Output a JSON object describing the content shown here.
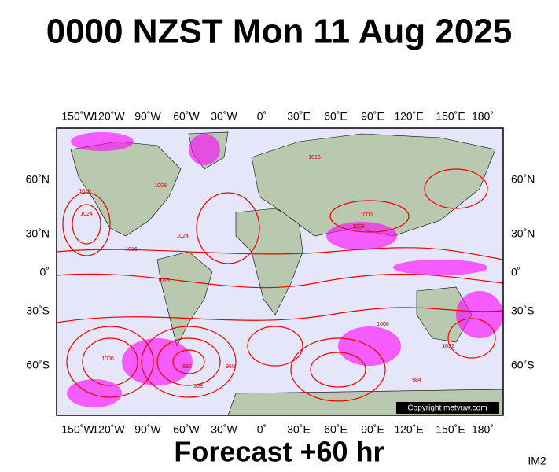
{
  "header": {
    "title": "0000 NZST Mon 11 Aug 2025"
  },
  "map": {
    "lon_labels": [
      "150˚W",
      "120˚W",
      "90˚W",
      "60˚W",
      "30˚W",
      "0˚",
      "30˚E",
      "60˚E",
      "90˚E",
      "120˚E",
      "150˚E",
      "180˚"
    ],
    "lat_labels": [
      "60˚N",
      "30˚N",
      "0˚",
      "30˚S",
      "60˚S"
    ],
    "isobar_labels": [
      "1016",
      "1008",
      "1024",
      "1016",
      "1000",
      "1008",
      "1016",
      "1024",
      "1016",
      "1000",
      "992",
      "960",
      "968",
      "984",
      "1032",
      "1008"
    ],
    "copyright": "Copyright metvuw.com"
  },
  "footer": {
    "forecast": "Forecast +60 hr",
    "image_id": "IM2"
  }
}
